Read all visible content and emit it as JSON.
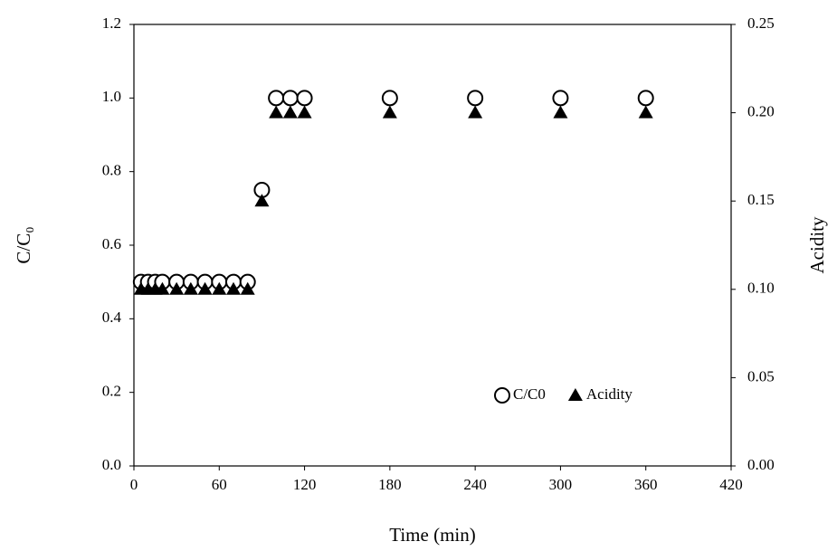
{
  "chart_data": {
    "type": "scatter",
    "x_label": "Time (min)",
    "y_label": "C/C₀",
    "y2_label": "Acidity",
    "xlim": [
      0,
      420
    ],
    "xticks": [
      0,
      60,
      120,
      180,
      240,
      300,
      360,
      420
    ],
    "ylim": [
      0,
      1.2
    ],
    "yticks": [
      {
        "value": 0,
        "label": "0.0"
      },
      0.2,
      0.4,
      0.6,
      0.8,
      {
        "value": 1,
        "label": "1.0"
      },
      1.2
    ],
    "y2lim": [
      0,
      0.25
    ],
    "y2ticks": [
      {
        "value": 0,
        "label": "0.00"
      },
      0.05,
      {
        "value": 0.1,
        "label": "0.10"
      },
      0.15,
      {
        "value": 0.2,
        "label": "0.20"
      },
      0.25
    ],
    "legend": "lower right",
    "series": [
      {
        "name": "C/C0",
        "color": "#000000",
        "marker": "circle-open",
        "x": [
          5,
          10,
          15,
          20,
          30,
          40,
          50,
          60,
          70,
          80,
          90,
          100,
          110,
          120,
          180,
          240,
          300,
          360
        ],
        "values": [
          0.5,
          0.5,
          0.5,
          0.5,
          0.5,
          0.5,
          0.5,
          0.5,
          0.5,
          0.5,
          0.75,
          1,
          1,
          1,
          1,
          1,
          1,
          1
        ]
      },
      {
        "name": "Acidity",
        "color": "#000000",
        "marker": "triangle",
        "axis": "y2",
        "x": [
          5,
          10,
          15,
          20,
          30,
          40,
          50,
          60,
          70,
          80,
          90,
          100,
          110,
          120,
          180,
          240,
          300,
          360
        ],
        "values": [
          0.1,
          0.1,
          0.1,
          0.1,
          0.1,
          0.1,
          0.1,
          0.1,
          0.1,
          0.1,
          0.15,
          0.2,
          0.2,
          0.2,
          0.2,
          0.2,
          0.2,
          0.2
        ]
      }
    ]
  }
}
